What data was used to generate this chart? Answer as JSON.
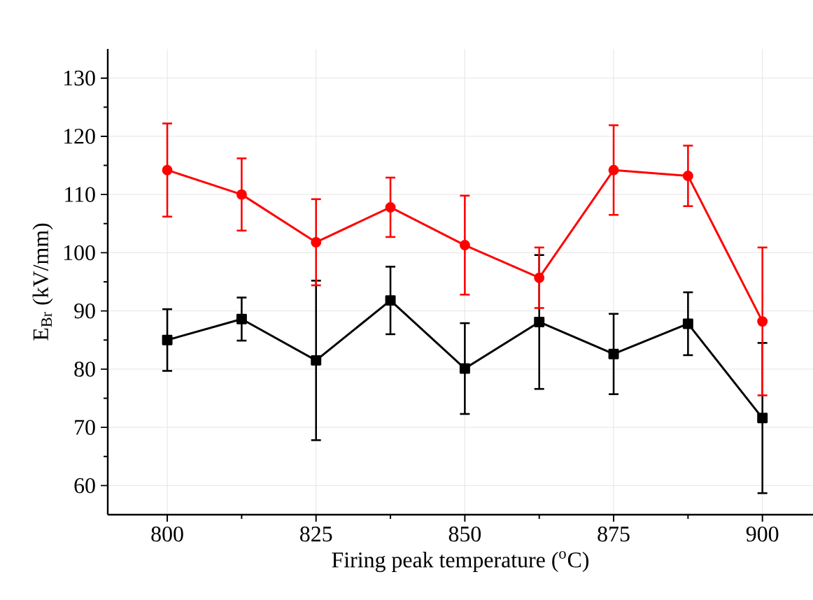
{
  "chart_data": {
    "type": "line",
    "xlabel": "Firing peak temperature ($^{o}$C)",
    "ylabel": "E$_{Br}$ (kV/mm)",
    "x": [
      800,
      812.5,
      825,
      837.5,
      850,
      862.5,
      875,
      887.5,
      900
    ],
    "series": [
      {
        "color": "#000000",
        "marker": "square",
        "values": [
          85,
          88.6,
          81.5,
          91.8,
          80.1,
          88.1,
          82.6,
          87.8,
          71.6
        ],
        "errors": [
          5.3,
          3.7,
          13.7,
          5.8,
          7.8,
          11.5,
          6.9,
          5.4,
          12.9
        ]
      },
      {
        "color": "#ff0000",
        "marker": "circle",
        "values": [
          114.2,
          110,
          101.8,
          107.8,
          101.3,
          95.7,
          114.2,
          113.2,
          88.2
        ],
        "errors": [
          8,
          6.2,
          7.4,
          5.1,
          8.5,
          5.2,
          7.7,
          5.2,
          12.7
        ]
      }
    ],
    "xlim": [
      790,
      908.5
    ],
    "ylim": [
      55,
      135
    ],
    "xticks": [
      800,
      825,
      850,
      875,
      900
    ],
    "yticks": [
      60,
      70,
      80,
      90,
      100,
      110,
      120,
      130
    ],
    "grid": true
  }
}
